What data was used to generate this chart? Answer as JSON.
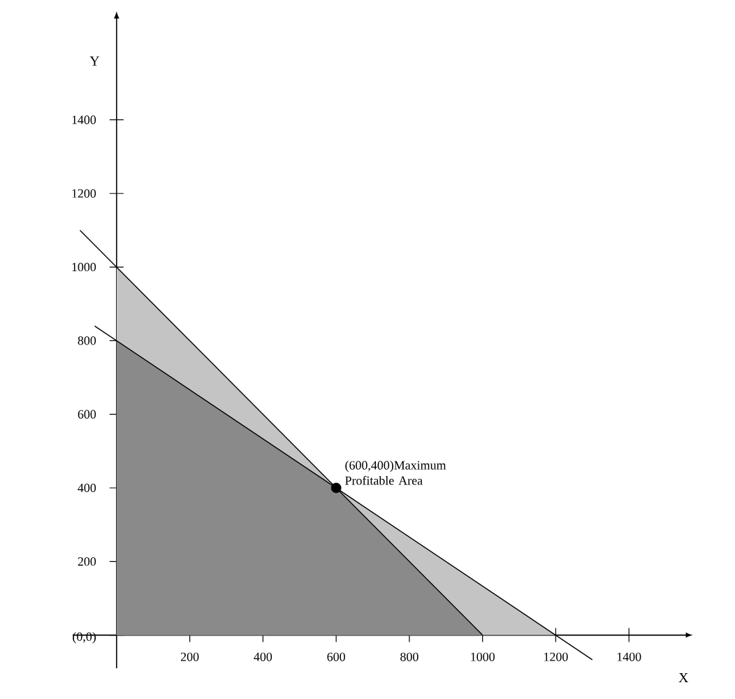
{
  "chart_data": {
    "type": "line",
    "xlabel": "X",
    "ylabel": "Y",
    "xlim": [
      -120,
      1560
    ],
    "ylim": [
      -90,
      1680
    ],
    "xticks": [
      200,
      400,
      600,
      800,
      1000,
      1200,
      1400
    ],
    "yticks": [
      {
        "value": 0,
        "label": "(0,0)"
      },
      200,
      400,
      600,
      800,
      1000,
      1200,
      1400
    ],
    "grid": false,
    "series": [
      {
        "type": "area",
        "color": "#c4c4c4",
        "x": [
          0,
          0,
          600,
          1200
        ],
        "values": [
          0,
          1000,
          400,
          0
        ]
      },
      {
        "type": "area",
        "color": "#8a8a8a",
        "x": [
          0,
          0,
          600,
          1000
        ],
        "values": [
          0,
          800,
          400,
          0
        ]
      },
      {
        "color": "#000000",
        "x": [
          -100,
          1000
        ],
        "values": [
          1100,
          0
        ]
      },
      {
        "color": "#000000",
        "x": [
          -60,
          1300
        ],
        "values": [
          840,
          -67
        ]
      },
      {
        "type": "scatter",
        "color": "#000000",
        "x": [
          600
        ],
        "values": [
          400
        ]
      }
    ],
    "annotations": [
      {
        "text": "(600,400)Maximum Profitable Area",
        "x": 600,
        "y": 400
      }
    ]
  }
}
